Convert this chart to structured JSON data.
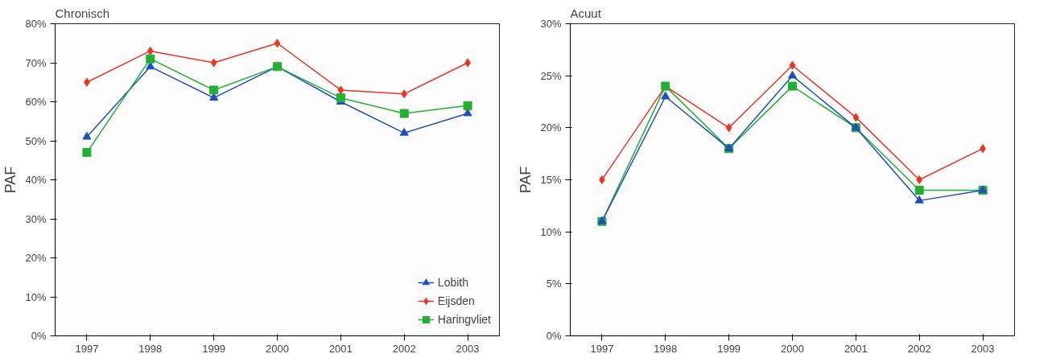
{
  "chart_data": [
    {
      "type": "line",
      "title": "Chronisch",
      "ylabel": "PAF",
      "categories": [
        "1997",
        "1998",
        "1999",
        "2000",
        "2001",
        "2002",
        "2003"
      ],
      "ylim": [
        0,
        80
      ],
      "yticks": [
        {
          "value": 0,
          "label": "0%"
        },
        {
          "value": 10,
          "label": "10%"
        },
        {
          "value": 20,
          "label": "20%"
        },
        {
          "value": 30,
          "label": "30%"
        },
        {
          "value": 40,
          "label": "40%"
        },
        {
          "value": 50,
          "label": "50%"
        },
        {
          "value": 60,
          "label": "60%"
        },
        {
          "value": 70,
          "label": "70%"
        },
        {
          "value": 80,
          "label": "80%"
        }
      ],
      "grid": false,
      "legend": "bottom right",
      "series": [
        {
          "name": "Lobith",
          "color": "#1f4fbf",
          "marker": "triangle",
          "values": [
            51,
            69,
            61,
            69,
            60,
            52,
            57
          ]
        },
        {
          "name": "Eijsden",
          "color": "#ee3322",
          "marker": "diamond",
          "values": [
            65,
            73,
            70,
            75,
            63,
            62,
            70
          ]
        },
        {
          "name": "Haringvliet",
          "color": "#22b033",
          "marker": "square",
          "values": [
            47,
            71,
            63,
            69,
            61,
            57,
            59
          ]
        }
      ]
    },
    {
      "type": "line",
      "title": "Acuut",
      "ylabel": "PAF",
      "categories": [
        "1997",
        "1998",
        "1999",
        "2000",
        "2001",
        "2002",
        "2003"
      ],
      "ylim": [
        0,
        30
      ],
      "yticks": [
        {
          "value": 0,
          "label": "0%"
        },
        {
          "value": 5,
          "label": "5%"
        },
        {
          "value": 10,
          "label": "10%"
        },
        {
          "value": 15,
          "label": "15%"
        },
        {
          "value": 20,
          "label": "20%"
        },
        {
          "value": 25,
          "label": "25%"
        },
        {
          "value": 30,
          "label": "30%"
        }
      ],
      "grid": false,
      "series": [
        {
          "color": "#ee3322",
          "marker": "diamond",
          "values": [
            15,
            24,
            20,
            26,
            21,
            15,
            18
          ]
        },
        {
          "color": "#22b033",
          "marker": "square",
          "values": [
            11,
            24,
            18,
            24,
            20,
            14,
            14
          ]
        },
        {
          "color": "#1f4fbf",
          "marker": "triangle",
          "values": [
            11,
            23,
            18,
            25,
            20,
            13,
            14
          ]
        }
      ]
    }
  ]
}
